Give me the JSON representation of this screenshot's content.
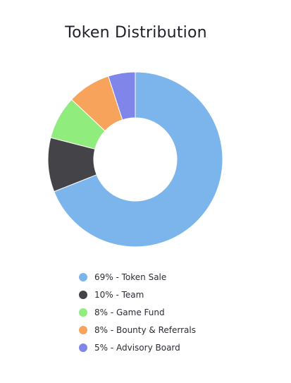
{
  "chart_data": {
    "type": "pie",
    "title": "Token Distribution",
    "donut": true,
    "legend_position": "bottom",
    "slices": [
      {
        "label": "69% - Token Sale",
        "value": 69,
        "color": "#7cb5ec"
      },
      {
        "label": "10% - Team",
        "value": 10,
        "color": "#434348"
      },
      {
        "label": "8% - Game Fund",
        "value": 8,
        "color": "#90ed7d"
      },
      {
        "label": "8% - Bounty & Referrals",
        "value": 8,
        "color": "#f7a35c"
      },
      {
        "label": "5% - Advisory Board",
        "value": 5,
        "color": "#8085e9"
      }
    ]
  }
}
